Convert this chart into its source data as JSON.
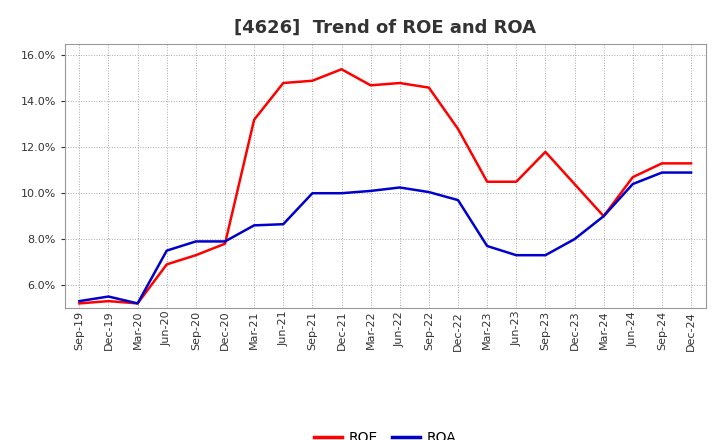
{
  "title": "[4626]  Trend of ROE and ROA",
  "x_labels": [
    "Sep-19",
    "Dec-19",
    "Mar-20",
    "Jun-20",
    "Sep-20",
    "Dec-20",
    "Mar-21",
    "Jun-21",
    "Sep-21",
    "Dec-21",
    "Mar-22",
    "Jun-22",
    "Sep-22",
    "Dec-22",
    "Mar-23",
    "Jun-23",
    "Sep-23",
    "Dec-23",
    "Mar-24",
    "Jun-24",
    "Sep-24",
    "Dec-24"
  ],
  "roe": [
    5.2,
    5.3,
    5.2,
    6.9,
    7.3,
    7.8,
    13.2,
    14.8,
    14.9,
    15.4,
    14.7,
    14.8,
    14.6,
    12.8,
    10.5,
    10.5,
    11.8,
    10.4,
    9.0,
    10.7,
    11.3,
    11.3
  ],
  "roa": [
    5.3,
    5.5,
    5.2,
    7.5,
    7.9,
    7.9,
    8.6,
    8.65,
    10.0,
    10.0,
    10.1,
    10.25,
    10.05,
    9.7,
    7.7,
    7.3,
    7.3,
    8.0,
    9.0,
    10.4,
    10.9,
    10.9
  ],
  "roe_color": "#ff0000",
  "roa_color": "#0000cc",
  "ylim_min": 5.0,
  "ylim_max": 16.5,
  "y_ticks": [
    6.0,
    8.0,
    10.0,
    12.0,
    14.0,
    16.0
  ],
  "plot_bg": "#ffffff",
  "fig_bg": "#ffffff",
  "grid_color": "#aaaaaa",
  "line_width": 1.8,
  "title_fontsize": 13,
  "tick_fontsize": 8,
  "legend_fontsize": 10
}
